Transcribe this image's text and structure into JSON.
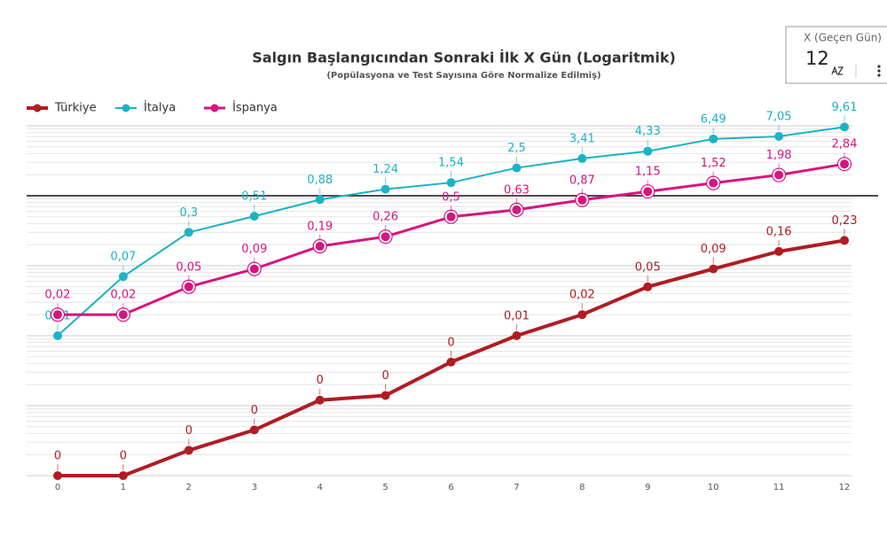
{
  "chart_data": {
    "type": "line",
    "title": "Salgın Başlangıcından Sonraki İlk X Gün (Logaritmik)",
    "subtitle": "(Popülasyona ve Test Sayısına Göre Normalize Edilmiş)",
    "x": [
      0,
      1,
      2,
      3,
      4,
      5,
      6,
      7,
      8,
      9,
      10,
      11,
      12
    ],
    "xlim": [
      0,
      12
    ],
    "xticks": [
      0,
      1,
      2,
      3,
      4,
      5,
      6,
      7,
      8,
      9,
      10,
      11,
      12
    ],
    "log_scale": true,
    "ylim": [
      0.0001,
      10
    ],
    "yticks": [
      0.0001,
      0.001,
      0.01,
      0.1,
      1,
      10
    ],
    "grid": true,
    "reference_line": 1,
    "legend": "top-left",
    "series": [
      {
        "name": "Türkiye",
        "color": "#b01c23",
        "values": [
          0.0001,
          0.0001,
          0.00023,
          0.00045,
          0.0012,
          0.0014,
          0.0042,
          0.01,
          0.02,
          0.05,
          0.09,
          0.16,
          0.23
        ],
        "value_labels": [
          "0",
          "0",
          "0",
          "0",
          "0",
          "0",
          "0",
          "0,01",
          "0,02",
          "0,05",
          "0,09",
          "0,16",
          "0,23"
        ]
      },
      {
        "name": "İtalya",
        "color": "#1ab3c6",
        "values": [
          0.01,
          0.07,
          0.3,
          0.51,
          0.88,
          1.24,
          1.54,
          2.5,
          3.41,
          4.33,
          6.49,
          7.05,
          9.61
        ],
        "value_labels": [
          "0,01",
          "0,07",
          "0,3",
          "0,51",
          "0,88",
          "1,24",
          "1,54",
          "2,5",
          "3,41",
          "4,33",
          "6,49",
          "7,05",
          "9,61"
        ]
      },
      {
        "name": "İspanya",
        "color": "#d6157f",
        "values": [
          0.02,
          0.02,
          0.05,
          0.09,
          0.19,
          0.26,
          0.5,
          0.63,
          0.87,
          1.15,
          1.52,
          1.98,
          2.84
        ],
        "value_labels": [
          "0,02",
          "0,02",
          "0,05",
          "0,09",
          "0,19",
          "0,26",
          "0,5",
          "0,63",
          "0,87",
          "1,15",
          "1,52",
          "1,98",
          "2,84"
        ]
      }
    ]
  },
  "control": {
    "label": "X (Geçen Gün)",
    "value": "12"
  }
}
